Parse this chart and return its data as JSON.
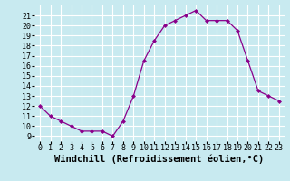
{
  "x": [
    0,
    1,
    2,
    3,
    4,
    5,
    6,
    7,
    8,
    9,
    10,
    11,
    12,
    13,
    14,
    15,
    16,
    17,
    18,
    19,
    20,
    21,
    22,
    23
  ],
  "y": [
    12,
    11,
    10.5,
    10,
    9.5,
    9.5,
    9.5,
    9,
    10.5,
    13,
    16.5,
    18.5,
    20,
    20.5,
    21,
    21.5,
    20.5,
    20.5,
    20.5,
    19.5,
    16.5,
    13.5,
    13,
    12.5
  ],
  "line_color": "#8B008B",
  "marker": "D",
  "marker_size": 2,
  "bg_color": "#c8eaf0",
  "grid_color": "#ffffff",
  "xlabel": "Windchill (Refroidissement éolien,°C)",
  "xlabel_fontsize": 7.5,
  "tick_fontsize": 6,
  "ylim": [
    8.5,
    22
  ],
  "xlim": [
    -0.5,
    23.5
  ],
  "yticks": [
    9,
    10,
    11,
    12,
    13,
    14,
    15,
    16,
    17,
    18,
    19,
    20,
    21
  ],
  "xticks": [
    0,
    1,
    2,
    3,
    4,
    5,
    6,
    7,
    8,
    9,
    10,
    11,
    12,
    13,
    14,
    15,
    16,
    17,
    18,
    19,
    20,
    21,
    22,
    23
  ]
}
